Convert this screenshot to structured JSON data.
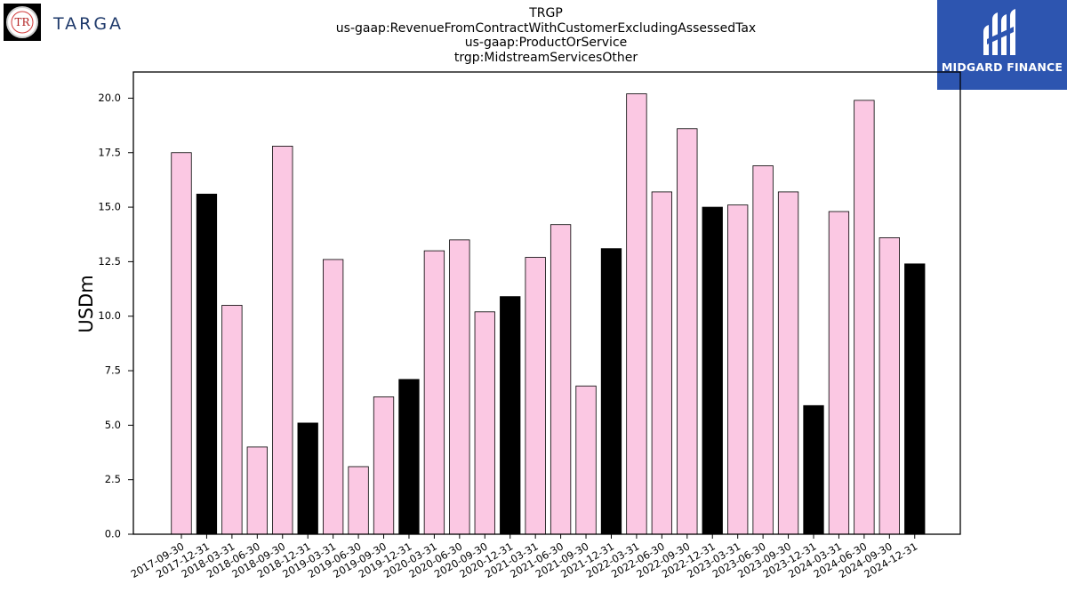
{
  "header": {
    "title_lines": [
      "TRGP",
      "us-gaap:RevenueFromContractWithCustomerExcludingAssessedTax",
      "us-gaap:ProductOrService",
      "trgp:MidstreamServicesOther"
    ]
  },
  "logos": {
    "left_text": "TARGA",
    "left_mark": "TR",
    "right_text": "MIDGARD FINANCE"
  },
  "colors": {
    "bar_default": "#fbc8e3",
    "bar_q4": "#000000",
    "logo_right_bg": "#2d55b0",
    "logo_left_text": "#1f3a6b"
  },
  "chart_data": {
    "type": "bar",
    "ylabel": "USDm",
    "xlabel": "",
    "ylim": [
      0,
      21.2
    ],
    "yticks": [
      "0.0",
      "2.5",
      "5.0",
      "7.5",
      "10.0",
      "12.5",
      "15.0",
      "17.5",
      "20.0"
    ],
    "categories": [
      "2017-09-30",
      "2017-12-31",
      "2018-03-31",
      "2018-06-30",
      "2018-09-30",
      "2018-12-31",
      "2019-03-31",
      "2019-06-30",
      "2019-09-30",
      "2019-12-31",
      "2020-03-31",
      "2020-06-30",
      "2020-09-30",
      "2020-12-31",
      "2021-03-31",
      "2021-06-30",
      "2021-09-30",
      "2021-12-31",
      "2022-03-31",
      "2022-06-30",
      "2022-09-30",
      "2022-12-31",
      "2023-03-31",
      "2023-06-30",
      "2023-09-30",
      "2023-12-31",
      "2024-03-31",
      "2024-06-30",
      "2024-09-30",
      "2024-12-31"
    ],
    "values": [
      17.5,
      15.6,
      10.5,
      4.0,
      17.8,
      5.1,
      12.6,
      3.1,
      6.3,
      7.1,
      13.0,
      13.5,
      10.2,
      10.9,
      12.7,
      14.2,
      6.8,
      13.1,
      20.2,
      15.7,
      18.6,
      15.0,
      15.1,
      16.9,
      15.7,
      5.9,
      14.8,
      19.9,
      13.6,
      12.4
    ],
    "grid": false,
    "legend": "none"
  }
}
